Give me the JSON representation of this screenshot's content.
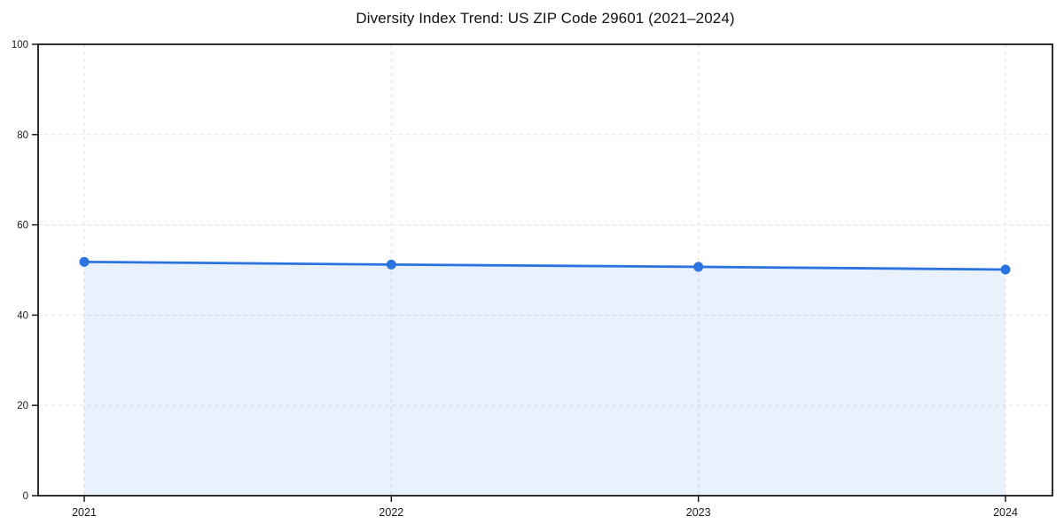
{
  "chart_data": {
    "type": "line",
    "title": "Diversity Index Trend: US ZIP Code 29601 (2021–2024)",
    "x": [
      "2021",
      "2022",
      "2023",
      "2024"
    ],
    "series": [
      {
        "name": "Diversity Index",
        "values": [
          51.8,
          51.2,
          50.7,
          50.1
        ]
      }
    ],
    "xlabel": "",
    "ylabel": "",
    "ylim": [
      0,
      100
    ],
    "yticks": [
      0,
      20,
      40,
      60,
      80,
      100
    ],
    "grid": true,
    "grid_style": "dashed",
    "legend": "none",
    "marker": "circle",
    "colors": {
      "line": "#2b74e0",
      "marker": "#2b74e0",
      "area_fill": "#2b74e0",
      "area_opacity": 0.1,
      "gridline": "#e2e2e2",
      "axis_frame": "#1a1a1a",
      "tick_text": "#1a1a1a",
      "title_text": "#111111",
      "background": "#ffffff"
    }
  }
}
